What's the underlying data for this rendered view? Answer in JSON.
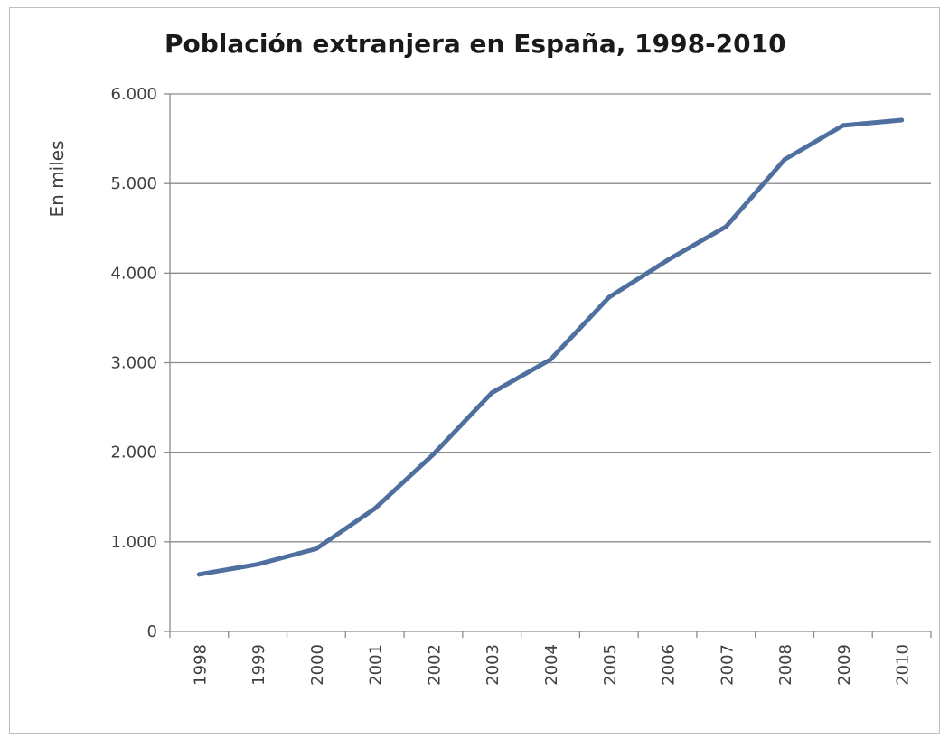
{
  "chart_data": {
    "type": "line",
    "title": "Población extranjera en España, 1998-2010",
    "ylabel": "En miles",
    "xlabel": "",
    "ylim": [
      0,
      6000
    ],
    "y_ticks": [
      0,
      1000,
      2000,
      3000,
      4000,
      5000,
      6000
    ],
    "y_tick_labels": [
      "0",
      "1.000",
      "2.000",
      "3.000",
      "4.000",
      "5.000",
      "6.000"
    ],
    "categories": [
      "1998",
      "1999",
      "2000",
      "2001",
      "2002",
      "2003",
      "2004",
      "2005",
      "2006",
      "2007",
      "2008",
      "2009",
      "2010"
    ],
    "series": [
      {
        "values": [
          637,
          749,
          923,
          1370,
          1977,
          2664,
          3034,
          3730,
          4144,
          4519,
          5268,
          5648,
          5708
        ]
      }
    ],
    "line_color": "#4f6f9f",
    "grid": "horizontal",
    "legend": "none"
  }
}
